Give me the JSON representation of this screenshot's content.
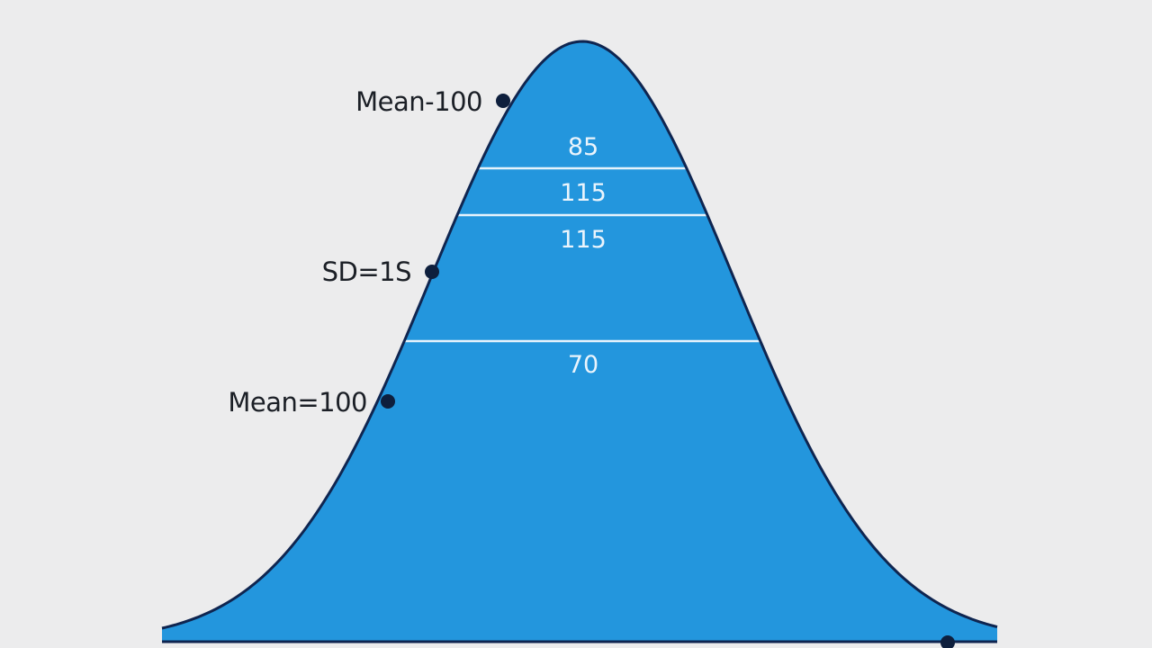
{
  "colors": {
    "background": "#ececed",
    "curve_fill": "#2396dd",
    "curve_outline": "#0f2550",
    "marker": "#0e1f3d",
    "band_line": "#e6f3fc",
    "side_label_text": "#1b1f26",
    "band_label_text": "#eaf4fc"
  },
  "side_labels": {
    "top": "Mean-100",
    "middle": "SD=1S",
    "lower": "Mean=100"
  },
  "band_labels": {
    "first": "85",
    "second": "115",
    "third": "115",
    "fourth": "70"
  }
}
